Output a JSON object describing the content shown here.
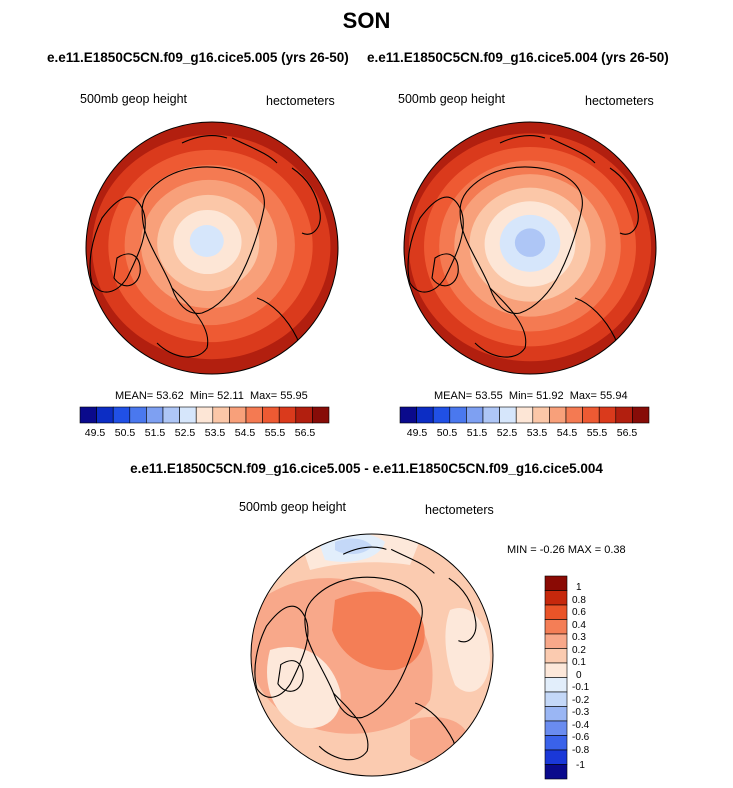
{
  "figure": {
    "title": "SON",
    "left_subtitle": "e.e11.E1850C5CN.f09_g16.cice5.005 (yrs 26-50)",
    "right_subtitle": "e.e11.E1850C5CN.f09_g16.cice5.004 (yrs 26-50)",
    "diff_title": "e.e11.E1850C5CN.f09_g16.cice5.005 - e.e11.E1850C5CN.f09_g16.cice5.004"
  },
  "chart_data": [
    {
      "type": "heatmap",
      "name": "left-map",
      "variable": "500mb geop height",
      "units": "hectometers",
      "projection": "polar-stereographic-north",
      "mean": "53.62",
      "min": "52.11",
      "max": "55.95",
      "colorbar_ticks": [
        "49.5",
        "50.5",
        "51.5",
        "52.5",
        "53.5",
        "54.5",
        "55.5",
        "56.5"
      ],
      "levels": [
        49.5,
        50,
        50.5,
        51,
        51.5,
        52,
        52.5,
        53,
        53.5,
        54,
        54.5,
        55,
        55.5,
        56,
        56.5
      ],
      "ring_values": [
        55.75,
        55.25,
        54.75,
        54.25,
        53.75,
        53.25,
        52.75,
        52.25
      ]
    },
    {
      "type": "heatmap",
      "name": "right-map",
      "variable": "500mb geop height",
      "units": "hectometers",
      "projection": "polar-stereographic-north",
      "mean": "53.55",
      "min": "51.92",
      "max": "55.94",
      "colorbar_ticks": [
        "49.5",
        "50.5",
        "51.5",
        "52.5",
        "53.5",
        "54.5",
        "55.5",
        "56.5"
      ],
      "levels": [
        49.5,
        50,
        50.5,
        51,
        51.5,
        52,
        52.5,
        53,
        53.5,
        54,
        54.5,
        55,
        55.5,
        56,
        56.5
      ],
      "ring_values": [
        55.75,
        55.25,
        54.75,
        54.25,
        53.75,
        53.25,
        52.75,
        52.25,
        51.75
      ]
    },
    {
      "type": "heatmap",
      "name": "difference-map",
      "variable": "500mb geop height",
      "units": "hectometers",
      "projection": "polar-stereographic-north",
      "min_label": "MIN = -0.26 MAX =  0.38",
      "colorbar_ticks": [
        "1",
        "0.8",
        "0.6",
        "0.4",
        "0.3",
        "0.2",
        "0.1",
        "0",
        "-0.1",
        "-0.2",
        "-0.3",
        "-0.4",
        "-0.6",
        "-0.8",
        "-1"
      ],
      "levels": [
        -1,
        -0.8,
        -0.6,
        -0.4,
        -0.3,
        -0.2,
        -0.1,
        0,
        0.1,
        0.2,
        0.3,
        0.4,
        0.6,
        0.8,
        1
      ]
    }
  ],
  "colors": {
    "abs_palette": [
      "#0a0a8c",
      "#0c2dc4",
      "#2050e6",
      "#4a78ee",
      "#7ea0f2",
      "#aec6f6",
      "#d6e6fb",
      "#fde6d6",
      "#fbc7a8",
      "#f8a07a",
      "#f47a52",
      "#ee5a33",
      "#da3a1c",
      "#b21f0f",
      "#870c08"
    ],
    "diff_palette": [
      "#0a0a8c",
      "#1a38d8",
      "#3a62ea",
      "#6a8cf0",
      "#9ab6f4",
      "#c4d8f8",
      "#e2eefb",
      "#fde8da",
      "#fbcbb0",
      "#f8a88a",
      "#f47e56",
      "#ea5428",
      "#c6280c",
      "#8a0a04"
    ]
  }
}
